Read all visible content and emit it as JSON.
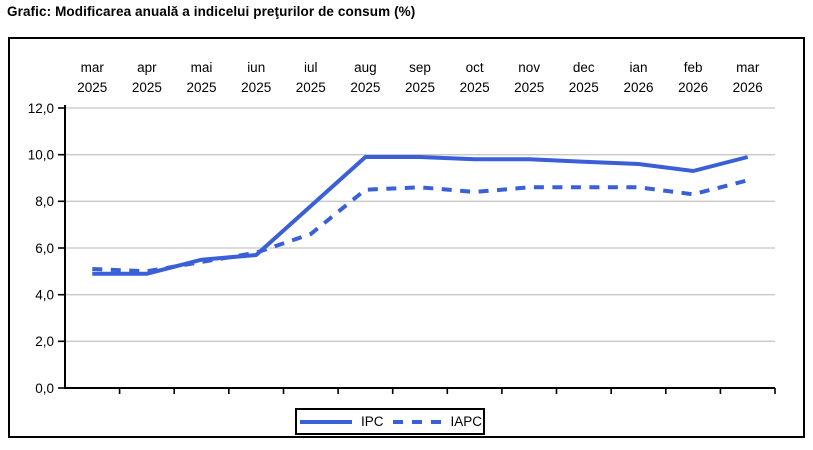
{
  "page": {
    "title": "Grafic: Modificarea anuală a indicelui preţurilor de consum (%)"
  },
  "colors": {
    "line": "#3a5fd7",
    "grid": "#c8c8c8",
    "axis": "#000000",
    "border": "#000000"
  },
  "chart_data": {
    "type": "line",
    "title": "Modificarea anuală a indicelui preţurilor de consum (%)",
    "categories": [
      "mar 2025",
      "apr 2025",
      "mai 2025",
      "iun 2025",
      "iul 2025",
      "aug 2025",
      "sep 2025",
      "oct 2025",
      "nov 2025",
      "dec 2025",
      "ian 2026",
      "feb 2026",
      "mar 2026"
    ],
    "series": [
      {
        "name": "IPC",
        "style": "solid",
        "values": [
          4.9,
          4.9,
          5.5,
          5.7,
          7.8,
          9.9,
          9.9,
          9.8,
          9.8,
          9.7,
          9.6,
          9.3,
          9.9
        ]
      },
      {
        "name": "IAPC",
        "style": "dashed",
        "values": [
          5.1,
          5.0,
          5.4,
          5.8,
          6.6,
          8.5,
          8.6,
          8.4,
          8.6,
          8.6,
          8.6,
          8.3,
          8.9
        ]
      }
    ],
    "y_ticks": {
      "labels": [
        "12,0",
        "10,0",
        "8,0",
        "6,0",
        "4,0",
        "2,0",
        "0,0"
      ],
      "values": [
        12,
        10,
        8,
        6,
        4,
        2,
        0
      ]
    },
    "ylim": [
      0,
      12
    ],
    "grid": true,
    "legend_position": "bottom"
  }
}
